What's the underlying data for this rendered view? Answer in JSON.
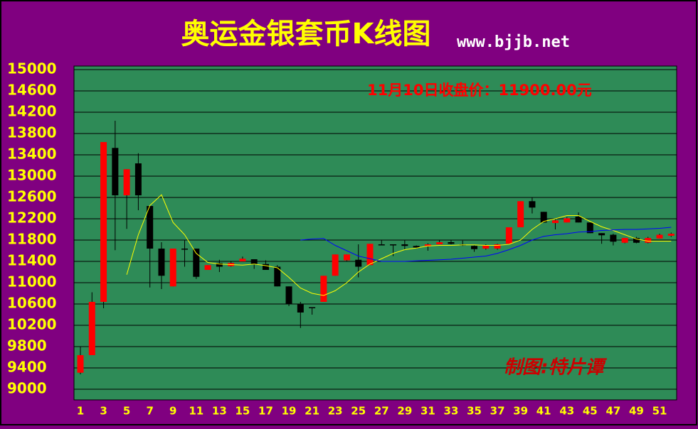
{
  "chart_data": {
    "type": "candlestick",
    "title": "奥运金银套币K线图",
    "subtitle": "www.bjjb.net",
    "annotation": "11月10日收盘价：11900.00元",
    "signature": "制图:特片谭",
    "categories": [
      "1",
      null,
      "3",
      null,
      "5",
      null,
      "7",
      null,
      "9",
      null,
      "11",
      null,
      "13",
      null,
      "15",
      null,
      "17",
      null,
      "19",
      null,
      "21",
      null,
      "23",
      null,
      "25",
      null,
      "27",
      null,
      "29",
      null,
      "31",
      null,
      "33",
      null,
      "35",
      null,
      "37",
      null,
      "39",
      null,
      "41",
      null,
      "43",
      null,
      "45",
      null,
      "47",
      null,
      "49",
      null,
      "51",
      null
    ],
    "open": [
      9310,
      9640,
      10640,
      13530,
      12640,
      13240,
      12440,
      11640,
      10930,
      11640,
      11640,
      11240,
      11370,
      11310,
      11400,
      11440,
      11350,
      11300,
      10930,
      10600,
      10540,
      10640,
      11130,
      11420,
      11430,
      11330,
      11720,
      11720,
      11720,
      11690,
      11680,
      11720,
      11760,
      11720,
      11690,
      11640,
      11640,
      11730,
      12040,
      12530,
      12330,
      12120,
      12130,
      12240,
      12130,
      11930,
      11900,
      11750,
      11840,
      11750,
      11830,
      11880
    ],
    "high": [
      9800,
      10820,
      13640,
      14040,
      13130,
      13430,
      12440,
      11760,
      11640,
      11800,
      11640,
      11330,
      11430,
      11400,
      11490,
      11440,
      11420,
      11330,
      10930,
      10640,
      10540,
      11130,
      11530,
      11530,
      11720,
      11730,
      11800,
      11720,
      11800,
      11700,
      11740,
      11800,
      11800,
      11790,
      11700,
      11720,
      11730,
      12040,
      12530,
      12600,
      12330,
      12200,
      12230,
      12320,
      12130,
      11930,
      11920,
      11840,
      11860,
      11860,
      11920,
      11940
    ],
    "low": [
      9280,
      9640,
      10520,
      11610,
      12010,
      12360,
      10910,
      10880,
      10930,
      11300,
      11070,
      11240,
      11200,
      11300,
      11400,
      11260,
      11240,
      10930,
      10560,
      10150,
      10400,
      10640,
      11130,
      11400,
      11100,
      11330,
      11700,
      11500,
      11620,
      11640,
      11600,
      11720,
      11720,
      11690,
      11580,
      11620,
      11620,
      11730,
      12040,
      12300,
      12130,
      12000,
      12130,
      12130,
      11930,
      11730,
      11700,
      11740,
      11740,
      11740,
      11830,
      11860
    ],
    "close": [
      9640,
      10640,
      13640,
      12640,
      13130,
      12640,
      11640,
      11130,
      11640,
      11620,
      11110,
      11330,
      11300,
      11370,
      11450,
      11350,
      11240,
      10930,
      10600,
      10440,
      10530,
      11130,
      11530,
      11530,
      11300,
      11730,
      11700,
      11710,
      11690,
      11660,
      11720,
      11760,
      11730,
      11710,
      11630,
      11700,
      11720,
      12040,
      12530,
      12410,
      12130,
      12170,
      12210,
      12130,
      11930,
      11890,
      11770,
      11840,
      11750,
      11840,
      11900,
      11920
    ],
    "up_color": "#ff0000",
    "down_color": "#000000",
    "lines": [
      {
        "color": "#ffff00",
        "values": [
          null,
          null,
          null,
          null,
          11150,
          11900,
          12450,
          12650,
          12130,
          11900,
          11550,
          11380,
          11350,
          11340,
          11330,
          11350,
          11320,
          11280,
          11100,
          10900,
          10800,
          10760,
          10850,
          11000,
          11200,
          11350,
          11450,
          11550,
          11620,
          11650,
          11690,
          11700,
          11700,
          11710,
          11710,
          11700,
          11700,
          11720,
          11800,
          12000,
          12150,
          12200,
          12260,
          12260,
          12150,
          12050,
          11980,
          11900,
          11820,
          11780,
          11780,
          11780
        ]
      },
      {
        "color": "#0000ff",
        "values": [
          null,
          null,
          null,
          null,
          null,
          null,
          null,
          null,
          null,
          null,
          null,
          null,
          null,
          null,
          null,
          null,
          null,
          null,
          null,
          11800,
          11820,
          11830,
          11700,
          11600,
          11500,
          11450,
          11400,
          11400,
          11400,
          11410,
          11420,
          11430,
          11440,
          11460,
          11480,
          11500,
          11550,
          11620,
          11700,
          11800,
          11870,
          11900,
          11920,
          11950,
          11960,
          11980,
          11990,
          12000,
          12000,
          12010,
          12020,
          12040
        ]
      }
    ],
    "ylim": [
      9000,
      15000
    ],
    "yticks": [
      9000,
      9400,
      9800,
      10200,
      10600,
      11000,
      11400,
      11800,
      12200,
      12600,
      13000,
      13400,
      13800,
      14200,
      14600,
      15000
    ],
    "grid": true
  }
}
